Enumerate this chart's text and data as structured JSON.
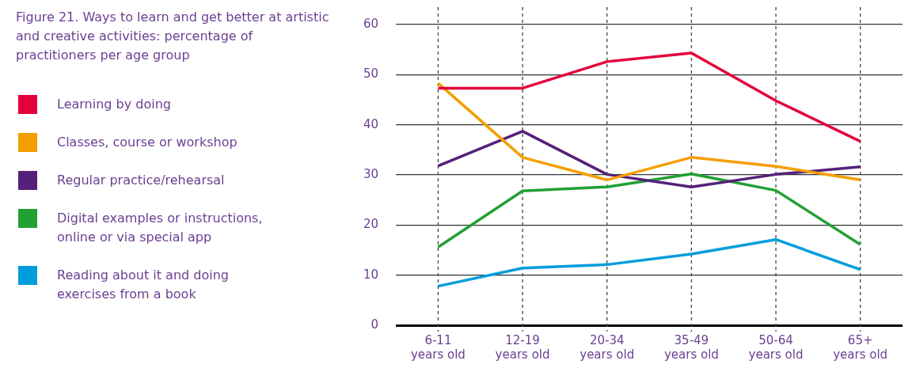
{
  "chart_data": {
    "type": "line",
    "title": "Figure 21. Ways to learn and get better at artistic and creative activities: percentage of practitioners per age group",
    "categories": [
      "6-11 years old",
      "12-19 years old",
      "20-34 years old",
      "35-49 years old",
      "50-64 years old",
      "65+ years old"
    ],
    "series": [
      {
        "name": "Learning by doing",
        "color": "#e4003a",
        "values": [
          47.3,
          47.3,
          52.6,
          54.3,
          44.8,
          36.7
        ]
      },
      {
        "name": "Classes, course or workshop",
        "color": "#f59e00",
        "values": [
          48.3,
          33.5,
          29.0,
          33.5,
          31.7,
          29.0
        ]
      },
      {
        "name": "Regular practice/rehearsal",
        "color": "#55207a",
        "values": [
          31.8,
          38.7,
          30.1,
          27.6,
          30.1,
          31.6
        ]
      },
      {
        "name": "Digital examples or instructions, online or via special app",
        "color": "#22a033",
        "values": [
          15.6,
          26.8,
          27.6,
          30.2,
          26.9,
          16.1
        ]
      },
      {
        "name": "Reading about it and doing exercises from a book",
        "color": "#009ddc",
        "values": [
          7.8,
          11.4,
          12.1,
          14.2,
          17.1,
          11.1
        ]
      }
    ],
    "ylim": [
      0,
      60
    ],
    "yticks": [
      0,
      10,
      20,
      30,
      40,
      50,
      60
    ],
    "grid": true,
    "legend": "left",
    "marker": "none",
    "line_style": "solid"
  }
}
